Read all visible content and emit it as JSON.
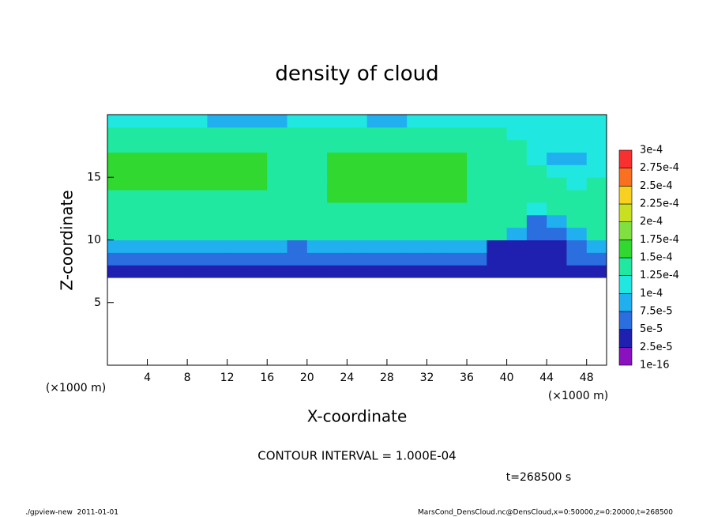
{
  "chart_data": {
    "type": "heatmap",
    "title": "density of cloud",
    "x_label": "X-coordinate",
    "y_label": "Z-coordinate",
    "x_unit": "(×1000 m)",
    "y_unit": "(×1000 m)",
    "xlim": [
      0,
      50
    ],
    "ylim": [
      0,
      20
    ],
    "xticks": [
      4,
      8,
      12,
      16,
      20,
      24,
      28,
      32,
      36,
      40,
      44,
      48
    ],
    "yticks": [
      5,
      10,
      15
    ],
    "xbins": [
      0,
      2,
      4,
      6,
      8,
      10,
      12,
      14,
      16,
      18,
      20,
      22,
      24,
      26,
      28,
      30,
      32,
      34,
      36,
      38,
      40,
      42,
      44,
      46,
      48,
      50
    ],
    "ybins": [
      7,
      8,
      9,
      10,
      11,
      12,
      13,
      14,
      15,
      16,
      17,
      18,
      19,
      20
    ],
    "values": [
      [
        3.5e-05,
        3.5e-05,
        3.5e-05,
        3.5e-05,
        3.5e-05,
        3.5e-05,
        3.5e-05,
        3.5e-05,
        3.5e-05,
        3.5e-05,
        3.5e-05,
        3.5e-05,
        3.5e-05,
        3.5e-05,
        3.5e-05,
        3.5e-05,
        3.5e-05,
        3.5e-05,
        3.5e-05,
        3.5e-05,
        3.5e-05,
        3.5e-05,
        3.5e-05,
        3.5e-05,
        3.5e-05
      ],
      [
        6e-05,
        6e-05,
        6e-05,
        6e-05,
        6e-05,
        6e-05,
        6e-05,
        6e-05,
        6e-05,
        6e-05,
        6e-05,
        6e-05,
        6e-05,
        6e-05,
        6e-05,
        6e-05,
        6e-05,
        6e-05,
        6e-05,
        4e-05,
        4e-05,
        4e-05,
        4e-05,
        6e-05,
        6e-05
      ],
      [
        8.5e-05,
        8.5e-05,
        8.5e-05,
        8.5e-05,
        8.5e-05,
        8.5e-05,
        8.5e-05,
        8.5e-05,
        8.5e-05,
        7e-05,
        8.5e-05,
        8.5e-05,
        8.5e-05,
        8.5e-05,
        8.5e-05,
        8.5e-05,
        8.5e-05,
        8.5e-05,
        8.5e-05,
        4e-05,
        4e-05,
        4e-05,
        4e-05,
        7e-05,
        8.5e-05
      ],
      [
        0.00013,
        0.00013,
        0.00013,
        0.00013,
        0.00013,
        0.00013,
        0.00013,
        0.00013,
        0.00013,
        0.00013,
        0.00013,
        0.00013,
        0.00013,
        0.00013,
        0.00013,
        0.00013,
        0.00013,
        0.00013,
        0.00013,
        0.00013,
        8e-05,
        5e-05,
        5e-05,
        8e-05,
        0.00013
      ],
      [
        0.00014,
        0.00014,
        0.00014,
        0.00014,
        0.00014,
        0.00014,
        0.00014,
        0.00014,
        0.00014,
        0.00014,
        0.00014,
        0.00014,
        0.00014,
        0.00014,
        0.00014,
        0.00014,
        0.00014,
        0.00014,
        0.00014,
        0.00014,
        0.00013,
        7e-05,
        9e-05,
        0.00013,
        0.00014
      ],
      [
        0.000145,
        0.000145,
        0.000145,
        0.000145,
        0.000145,
        0.000145,
        0.000145,
        0.000145,
        0.000145,
        0.000145,
        0.000145,
        0.000145,
        0.000145,
        0.000145,
        0.000145,
        0.000145,
        0.000145,
        0.000145,
        0.000145,
        0.000145,
        0.000145,
        0.00011,
        0.00013,
        0.00014,
        0.000145
      ],
      [
        0.000145,
        0.000145,
        0.000145,
        0.000145,
        0.000145,
        0.000145,
        0.000145,
        0.000145,
        0.000145,
        0.000145,
        0.000145,
        0.00016,
        0.00016,
        0.00016,
        0.00016,
        0.00016,
        0.00016,
        0.00016,
        0.000145,
        0.000145,
        0.000145,
        0.000145,
        0.000145,
        0.000145,
        0.000145
      ],
      [
        0.000155,
        0.000155,
        0.000155,
        0.000155,
        0.000155,
        0.000155,
        0.000155,
        0.000155,
        0.000145,
        0.000145,
        0.000145,
        0.00016,
        0.00016,
        0.00016,
        0.00016,
        0.00016,
        0.00016,
        0.00016,
        0.000145,
        0.000145,
        0.000145,
        0.000145,
        0.00013,
        0.00012,
        0.00013
      ],
      [
        0.000155,
        0.000155,
        0.000155,
        0.000155,
        0.000155,
        0.000155,
        0.000155,
        0.000155,
        0.000145,
        0.000145,
        0.000145,
        0.00016,
        0.00016,
        0.00016,
        0.00016,
        0.00016,
        0.00016,
        0.00016,
        0.000145,
        0.000145,
        0.000145,
        0.000145,
        0.00012,
        0.00011,
        0.00012
      ],
      [
        0.000155,
        0.000155,
        0.000155,
        0.000155,
        0.000155,
        0.000155,
        0.000155,
        0.000155,
        0.000145,
        0.000145,
        0.000145,
        0.00016,
        0.00016,
        0.00016,
        0.00016,
        0.00016,
        0.00016,
        0.00016,
        0.00014,
        0.00014,
        0.00014,
        0.00012,
        9e-05,
        8e-05,
        0.00011
      ],
      [
        0.00014,
        0.00014,
        0.00014,
        0.00014,
        0.00014,
        0.00014,
        0.00014,
        0.00014,
        0.00014,
        0.00014,
        0.00014,
        0.00014,
        0.00014,
        0.00014,
        0.00014,
        0.00014,
        0.00014,
        0.00014,
        0.00014,
        0.00014,
        0.00014,
        0.00012,
        0.00012,
        0.00012,
        0.00012
      ],
      [
        0.00013,
        0.00013,
        0.00013,
        0.00013,
        0.00013,
        0.00013,
        0.00013,
        0.00013,
        0.00013,
        0.00013,
        0.00013,
        0.00013,
        0.00013,
        0.00013,
        0.00013,
        0.00013,
        0.00013,
        0.00013,
        0.00013,
        0.00013,
        0.00011,
        0.00011,
        0.00011,
        0.00011,
        0.00011
      ],
      [
        0.00011,
        0.00011,
        0.00011,
        0.00011,
        0.00011,
        9e-05,
        9e-05,
        9e-05,
        9e-05,
        0.00011,
        0.00011,
        0.00011,
        0.00011,
        9e-05,
        9e-05,
        0.00011,
        0.00011,
        0.00011,
        0.00011,
        0.00011,
        0.00011,
        0.00011,
        0.00011,
        0.00011,
        0.00011
      ]
    ],
    "levels": [
      {
        "value": 1e-16,
        "label": "1e-16"
      },
      {
        "value": 2.5e-05,
        "label": "2.5e-5"
      },
      {
        "value": 5e-05,
        "label": "5e-5"
      },
      {
        "value": 7.5e-05,
        "label": "7.5e-5"
      },
      {
        "value": 0.0001,
        "label": "1e-4"
      },
      {
        "value": 0.000125,
        "label": "1.25e-4"
      },
      {
        "value": 0.00015,
        "label": "1.5e-4"
      },
      {
        "value": 0.000175,
        "label": "1.75e-4"
      },
      {
        "value": 0.0002,
        "label": "2e-4"
      },
      {
        "value": 0.000225,
        "label": "2.25e-4"
      },
      {
        "value": 0.00025,
        "label": "2.5e-4"
      },
      {
        "value": 0.000275,
        "label": "2.75e-4"
      },
      {
        "value": 0.0003,
        "label": "3e-4"
      }
    ],
    "level_colors": [
      "#8a10c0",
      "#2020b0",
      "#2a6ee0",
      "#20b0f0",
      "#20e8e0",
      "#20e8a0",
      "#30d830",
      "#80e040",
      "#c8e020",
      "#f8d020",
      "#f87020",
      "#f83030"
    ],
    "contour_note": "CONTOUR INTERVAL = 1.000E-04",
    "time_note": "t=268500 s",
    "footer_left": "./gpview-new  2011-01-01",
    "footer_right": "MarsCond_DensCloud.nc@DensCloud,x=0:50000,z=0:20000,t=268500"
  }
}
